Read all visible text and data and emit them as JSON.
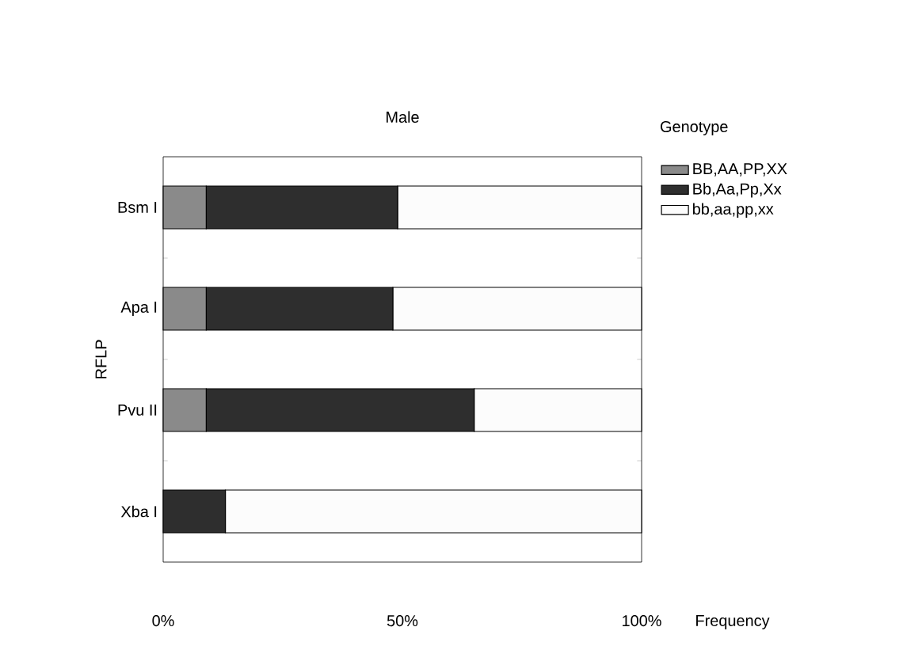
{
  "chart_data": {
    "type": "bar",
    "orientation": "horizontal",
    "stacked": true,
    "title": "Male",
    "ylabel": "RFLP",
    "xlabel": "Frequency",
    "legend_title": "Genotype",
    "legend": "right",
    "categories": [
      "Bsm I",
      "Apa I",
      "Pvu II",
      "Xba I"
    ],
    "series": [
      {
        "name": "BB,AA,PP,XX",
        "color": "#8a8a8a",
        "values": [
          9,
          9,
          9,
          0
        ]
      },
      {
        "name": "Bb,Aa,Pp,Xx",
        "color": "#2e2e2e",
        "values": [
          40,
          39,
          56,
          13
        ]
      },
      {
        "name": "bb,aa,pp,xx",
        "color": "#fcfcfc",
        "values": [
          51,
          52,
          35,
          87
        ]
      }
    ],
    "xlim": [
      0,
      100
    ],
    "xticks": [
      {
        "value": 0,
        "label": "0%"
      },
      {
        "value": 50,
        "label": "50%"
      },
      {
        "value": 100,
        "label": "100%"
      }
    ]
  }
}
